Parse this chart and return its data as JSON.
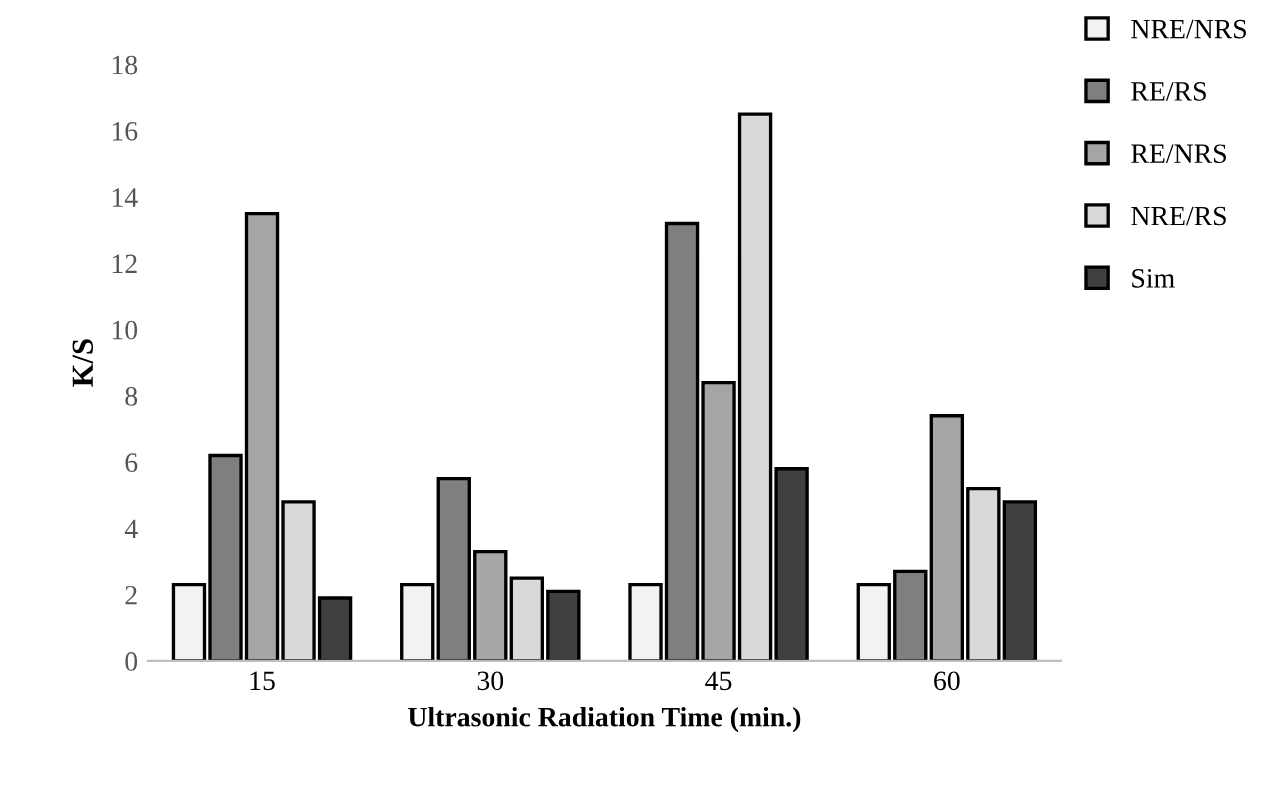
{
  "chart_data": {
    "type": "bar",
    "xlabel": "Ultrasonic Radiation Time (min.)",
    "ylabel": "K/S",
    "categories": [
      "15",
      "30",
      "45",
      "60"
    ],
    "series": [
      {
        "name": "NRE/NRS",
        "color": "#f2f2f2",
        "values": [
          2.3,
          2.3,
          2.3,
          2.3
        ]
      },
      {
        "name": "RE/RS",
        "color": "#7f7f7f",
        "values": [
          6.2,
          5.5,
          13.2,
          2.7
        ]
      },
      {
        "name": "RE/NRS",
        "color": "#a6a6a6",
        "values": [
          13.5,
          3.3,
          8.4,
          7.4
        ]
      },
      {
        "name": "NRE/RS",
        "color": "#d9d9d9",
        "values": [
          4.8,
          2.5,
          16.5,
          5.2
        ]
      },
      {
        "name": "Sim",
        "color": "#404040",
        "values": [
          1.9,
          2.1,
          5.8,
          4.8
        ]
      }
    ],
    "ylim": [
      0,
      18
    ],
    "yticks": [
      0,
      2,
      4,
      6,
      8,
      10,
      12,
      14,
      16,
      18
    ],
    "grid": false,
    "legend": "top right"
  }
}
